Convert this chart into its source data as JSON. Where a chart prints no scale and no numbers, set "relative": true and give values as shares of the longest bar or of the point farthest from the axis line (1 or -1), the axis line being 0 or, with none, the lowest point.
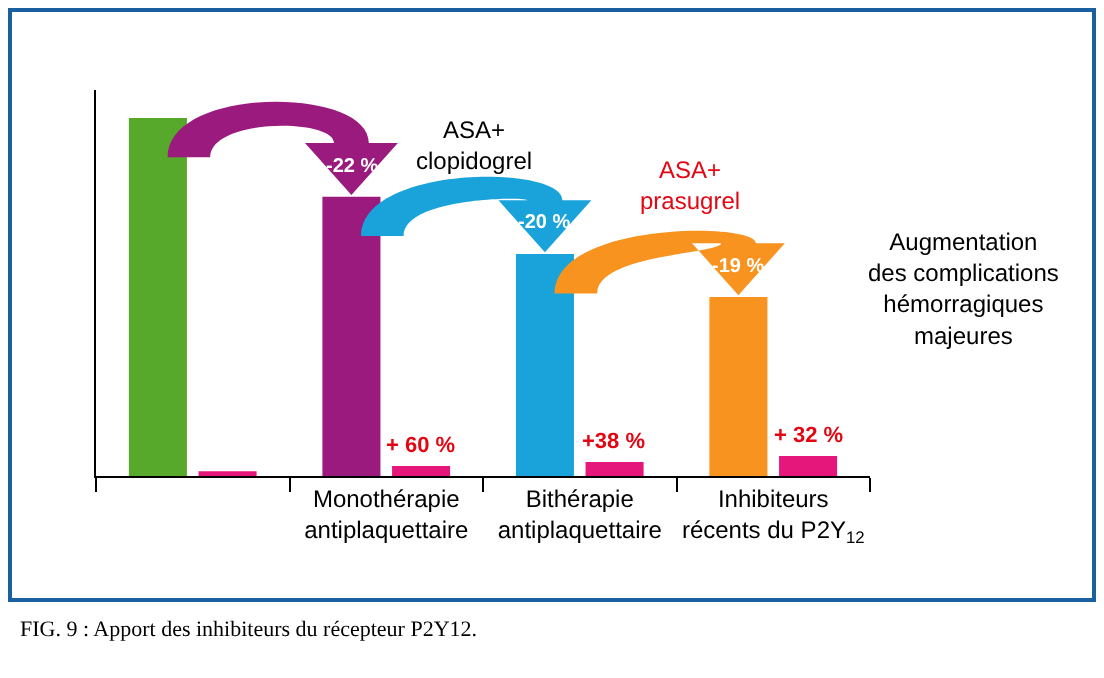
{
  "chart_data": {
    "type": "bar",
    "relative": true,
    "categories": [
      null,
      "Monothérapie\nantiplaquettaire",
      "Bithérapie\nantiplaquettaire",
      "Inhibiteurs\nrécents du P2Y$_{12}$"
    ],
    "series": [
      {
        "colors": [
          "#57a92b",
          "#9a1a7e",
          "#1aa2db",
          "#f7931e"
        ],
        "values": [
          1,
          0.78,
          0.62,
          0.5
        ]
      },
      {
        "color": "#e5177b",
        "values": [
          0.013,
          0.028,
          0.039,
          0.056
        ]
      }
    ],
    "annotations": [
      "ASA+\nclopidogrel",
      "ASA+\nprasugrel",
      "Augmentation\ndes complications\nhémorragiques\nmajeures",
      "FIG. 9 : Apport des inhibiteurs du récepteur P2Y12.",
      {
        "text": "-22 %",
        "x": "Monothérapie\nantiplaquettaire",
        "y": 0.78
      },
      {
        "text": "-20 %",
        "x": "Bithérapie\nantiplaquettaire",
        "y": 0.62
      },
      {
        "text": "-19 %",
        "x": "Inhibiteurs\nrécents du P2Y$_{12}$",
        "y": 0.5
      },
      {
        "text": "+ 60 %",
        "x": "Monothérapie\nantiplaquettaire",
        "y": 0.028
      },
      {
        "text": "+38 %",
        "x": "Bithérapie\nantiplaquettaire",
        "y": 0.039
      },
      {
        "text": "+ 32 %",
        "x": "Inhibiteurs\nrécents du P2Y$_{12}$",
        "y": 0.056
      }
    ]
  }
}
